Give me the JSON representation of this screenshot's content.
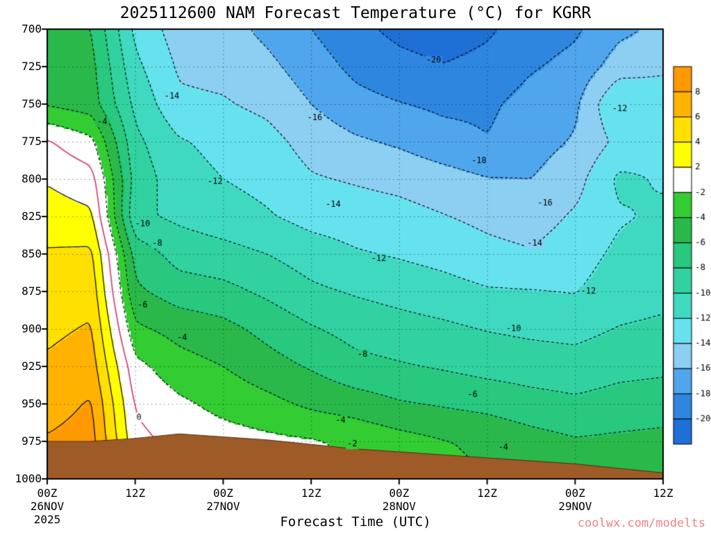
{
  "watermark": {
    "text": "coolwx.com/modelts",
    "color": "#F08080"
  },
  "chart_data": {
    "type": "contour",
    "title": "2025112600 NAM Forecast Temperature (°C) for KGRR",
    "xlabel": "Forecast Time (UTC)",
    "x_hours": [
      0,
      6,
      12,
      18,
      24,
      30,
      36,
      42,
      48,
      54,
      60,
      66,
      72,
      78,
      84
    ],
    "x_ticks": [
      {
        "hour": 0,
        "lines": [
          "00Z",
          "26NOV",
          "2025"
        ]
      },
      {
        "hour": 12,
        "lines": [
          "12Z"
        ]
      },
      {
        "hour": 24,
        "lines": [
          "00Z",
          "27NOV"
        ]
      },
      {
        "hour": 36,
        "lines": [
          "12Z"
        ]
      },
      {
        "hour": 48,
        "lines": [
          "00Z",
          "28NOV"
        ]
      },
      {
        "hour": 60,
        "lines": [
          "12Z"
        ]
      },
      {
        "hour": 72,
        "lines": [
          "00Z",
          "29NOV"
        ]
      },
      {
        "hour": 84,
        "lines": [
          "12Z"
        ]
      }
    ],
    "y_ticks": [
      700,
      725,
      750,
      775,
      800,
      825,
      850,
      875,
      900,
      925,
      950,
      975,
      1000
    ],
    "pressure_levels": [
      700,
      725,
      750,
      775,
      800,
      825,
      850,
      875,
      900,
      925,
      950,
      975,
      1000
    ],
    "temperature_c": [
      [
        -5.0,
        -6.0,
        -12.5,
        -15.0,
        -15.2,
        -16.5,
        -18.0,
        -19.5,
        -20.5,
        -21.0,
        -20.3,
        -19.0,
        -18.3,
        -16.5,
        -15.5
      ],
      [
        -4.6,
        -5.4,
        -11.5,
        -14.3,
        -14.6,
        -15.5,
        -17.0,
        -18.5,
        -19.4,
        -19.9,
        -19.4,
        -18.2,
        -17.4,
        -15.0,
        -14.3
      ],
      [
        -4.2,
        -5.0,
        -10.5,
        -13.6,
        -13.8,
        -14.5,
        -16.0,
        -17.3,
        -17.9,
        -18.4,
        -18.4,
        -17.2,
        -16.4,
        -11.8,
        -13.0
      ],
      [
        0.2,
        -1.5,
        -9.5,
        -11.8,
        -12.6,
        -13.3,
        -14.8,
        -15.7,
        -16.3,
        -17.2,
        -17.9,
        -16.8,
        -15.8,
        -13.5,
        -12.6
      ],
      [
        1.8,
        0.8,
        -8.8,
        -11.2,
        -12.0,
        -12.6,
        -13.8,
        -14.2,
        -14.6,
        -15.2,
        -15.9,
        -16.0,
        -14.8,
        -11.6,
        -12.2
      ],
      [
        3.0,
        2.4,
        -9.6,
        -10.4,
        -11.1,
        -11.8,
        -12.7,
        -13.0,
        -13.3,
        -13.9,
        -14.5,
        -15.0,
        -13.7,
        -12.2,
        -11.7
      ],
      [
        4.2,
        4.4,
        -6.8,
        -8.8,
        -9.3,
        -10.0,
        -11.0,
        -11.8,
        -12.2,
        -12.7,
        -13.4,
        -13.8,
        -12.8,
        -11.6,
        -11.2
      ],
      [
        5.0,
        5.3,
        -5.6,
        -7.0,
        -7.4,
        -8.4,
        -9.6,
        -10.2,
        -10.7,
        -11.2,
        -11.8,
        -11.9,
        -12.1,
        -11.0,
        -10.6
      ],
      [
        5.6,
        6.2,
        -3.6,
        -4.7,
        -5.4,
        -6.6,
        -7.8,
        -8.7,
        -9.2,
        -9.6,
        -10.1,
        -10.4,
        -10.6,
        -9.9,
        -9.6
      ],
      [
        6.3,
        7.0,
        -1.4,
        -3.2,
        -4.0,
        -5.2,
        -6.2,
        -7.4,
        -7.8,
        -8.2,
        -8.7,
        -9.0,
        -9.2,
        -8.6,
        -8.4
      ],
      [
        7.2,
        8.2,
        -0.2,
        -1.6,
        -2.6,
        -3.4,
        -4.4,
        -5.0,
        -5.8,
        -6.2,
        -6.6,
        -7.2,
        -7.6,
        -7.2,
        -7.0
      ],
      [
        8.2,
        8.8,
        0.6,
        -0.6,
        -1.1,
        -1.5,
        -1.8,
        -2.4,
        -3.2,
        -3.9,
        -4.4,
        -5.2,
        -5.8,
        -5.6,
        -5.4
      ],
      [
        8.5,
        9.2,
        1.2,
        0.0,
        -0.6,
        -1.1,
        -1.4,
        -2.0,
        -2.7,
        -3.4,
        -4.0,
        -4.9,
        -5.5,
        -5.3,
        -5.1
      ]
    ],
    "surface_pressure_hpa": [
      975,
      975,
      973,
      970,
      972,
      974,
      977,
      980,
      982,
      984,
      986,
      988,
      990,
      993,
      996
    ],
    "band_bounds": [
      8,
      6,
      4,
      2,
      -2,
      -4,
      -6,
      -8,
      -10,
      -12,
      -14,
      -16,
      -18,
      -20
    ],
    "band_colors": [
      "#FF9900",
      "#FFB300",
      "#FFE000",
      "#FFFF00",
      "#FFFFFF",
      "#33CC33",
      "#2AB84B",
      "#28C87E",
      "#32D2A0",
      "#3FD9C0",
      "#66E2EE",
      "#8CCFF2",
      "#4FA6EC",
      "#2E86DF",
      "#1E6FD6"
    ],
    "colorbar_tick_labels": [
      "8",
      "6",
      "4",
      "2",
      "-2",
      "-4",
      "-6",
      "-8",
      "-10",
      "-12",
      "-14",
      "-16",
      "-18",
      "-20"
    ],
    "contour_levels_dashed": [
      -2,
      -4,
      -6,
      -8,
      -10,
      -12,
      -14,
      -16,
      -18,
      -20
    ],
    "contour_levels_solid": [
      2,
      4,
      6,
      8
    ],
    "zero_level": 0,
    "zero_line_color": "#D6336C",
    "ground_color": "#9E5B28",
    "contour_labels": [
      {
        "text": "-4",
        "hour": 7.5,
        "pressure": 762
      },
      {
        "text": "-14",
        "hour": 17,
        "pressure": 745
      },
      {
        "text": "-12",
        "hour": 22.9,
        "pressure": 802
      },
      {
        "text": "-10",
        "hour": 13,
        "pressure": 830
      },
      {
        "text": "-8",
        "hour": 15,
        "pressure": 843
      },
      {
        "text": "-6",
        "hour": 13,
        "pressure": 884
      },
      {
        "text": "-4",
        "hour": 18.4,
        "pressure": 906
      },
      {
        "text": "0",
        "hour": 12.5,
        "pressure": 959
      },
      {
        "text": "-16",
        "hour": 36.5,
        "pressure": 759
      },
      {
        "text": "-20",
        "hour": 52.7,
        "pressure": 721
      },
      {
        "text": "-18",
        "hour": 58.9,
        "pressure": 788
      },
      {
        "text": "-14",
        "hour": 39,
        "pressure": 817
      },
      {
        "text": "-12",
        "hour": 45.2,
        "pressure": 853
      },
      {
        "text": "-10",
        "hour": 63.6,
        "pressure": 900
      },
      {
        "text": "-8",
        "hour": 43,
        "pressure": 917
      },
      {
        "text": "-6",
        "hour": 58,
        "pressure": 944
      },
      {
        "text": "-4",
        "hour": 40,
        "pressure": 961
      },
      {
        "text": "-2",
        "hour": 41.6,
        "pressure": 977
      },
      {
        "text": "-4",
        "hour": 62.2,
        "pressure": 979
      },
      {
        "text": "-14",
        "hour": 66.5,
        "pressure": 843
      },
      {
        "text": "-16",
        "hour": 67.9,
        "pressure": 816
      },
      {
        "text": "-12",
        "hour": 73.8,
        "pressure": 875
      },
      {
        "text": "-12",
        "hour": 78.1,
        "pressure": 753
      }
    ]
  }
}
